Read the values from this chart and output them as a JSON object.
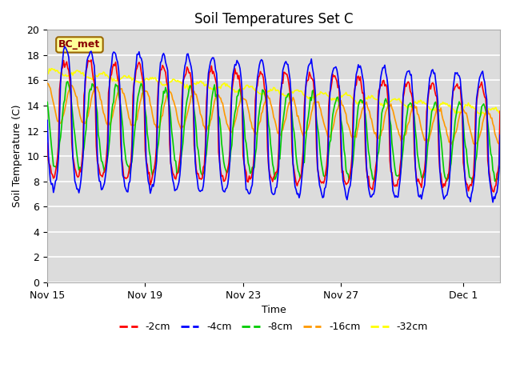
{
  "title": "Soil Temperatures Set C",
  "xlabel": "Time",
  "ylabel": "Soil Temperature (C)",
  "ylim": [
    0,
    20
  ],
  "yticks": [
    0,
    2,
    4,
    6,
    8,
    10,
    12,
    14,
    16,
    18,
    20
  ],
  "series_colors": {
    "-2cm": "#ff0000",
    "-4cm": "#0000ff",
    "-8cm": "#00cc00",
    "-16cm": "#ff9900",
    "-32cm": "#ffff00"
  },
  "series_labels": [
    "-2cm",
    "-4cm",
    "-8cm",
    "-16cm",
    "-32cm"
  ],
  "annotation_text": "BC_met",
  "annotation_bg": "#ffff99",
  "annotation_border": "#996600",
  "plot_bg": "#dcdcdc",
  "fig_bg": "#ffffff",
  "title_fontsize": 12,
  "axis_label_fontsize": 9,
  "legend_fontsize": 9,
  "grid_color": "#ffffff",
  "line_width": 1.2,
  "xtick_labels": [
    "Nov 15",
    "Nov 19",
    "Nov 23",
    "Nov 27",
    "Dec 1"
  ],
  "xtick_days": [
    0,
    4,
    8,
    12,
    17
  ],
  "total_days": 18.5
}
